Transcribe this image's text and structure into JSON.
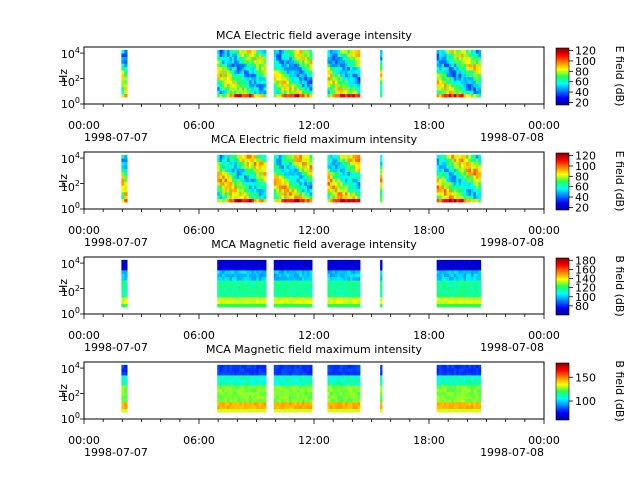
{
  "chart_data": [
    {
      "type": "heatmap",
      "title": "MCA  Electric field average intensity",
      "ylabel": "Hz",
      "y_scale": "log",
      "ylim": [
        1,
        30000
      ],
      "y_ticks": [
        {
          "base": "10",
          "exp": "0"
        },
        {
          "base": "10",
          "exp": "2"
        },
        {
          "base": "10",
          "exp": "4"
        }
      ],
      "x_range": [
        "1998-07-07 00:00",
        "1998-07-08 00:00"
      ],
      "x_ticks": [
        "00:00",
        "06:00",
        "12:00",
        "18:00",
        "00:00"
      ],
      "x_date_labels": [
        "1998-07-07",
        "1998-07-08"
      ],
      "colorbar": {
        "label": "E field (dB)",
        "range": [
          15,
          125
        ],
        "ticks": [
          "20",
          "40",
          "60",
          "80",
          "100",
          "120"
        ]
      },
      "data_intervals_hours": [
        [
          1.95,
          2.25
        ],
        [
          6.95,
          9.5
        ],
        [
          9.9,
          11.9
        ],
        [
          12.7,
          14.4
        ],
        [
          15.45,
          15.55
        ],
        [
          18.4,
          20.7
        ]
      ],
      "intensity_profile": "electric_avg"
    },
    {
      "type": "heatmap",
      "title": "MCA  Electric field maximum intensity",
      "ylabel": "Hz",
      "y_scale": "log",
      "ylim": [
        1,
        30000
      ],
      "y_ticks": [
        {
          "base": "10",
          "exp": "0"
        },
        {
          "base": "10",
          "exp": "2"
        },
        {
          "base": "10",
          "exp": "4"
        }
      ],
      "x_range": [
        "1998-07-07 00:00",
        "1998-07-08 00:00"
      ],
      "x_ticks": [
        "00:00",
        "06:00",
        "12:00",
        "18:00",
        "00:00"
      ],
      "x_date_labels": [
        "1998-07-07",
        "1998-07-08"
      ],
      "colorbar": {
        "label": "E field (dB)",
        "range": [
          15,
          125
        ],
        "ticks": [
          "20",
          "40",
          "60",
          "80",
          "100",
          "120"
        ]
      },
      "data_intervals_hours": [
        [
          1.95,
          2.25
        ],
        [
          6.95,
          9.5
        ],
        [
          9.9,
          11.9
        ],
        [
          12.7,
          14.4
        ],
        [
          15.45,
          15.55
        ],
        [
          18.4,
          20.7
        ]
      ],
      "intensity_profile": "electric_max"
    },
    {
      "type": "heatmap",
      "title": "MCA  Magnetic field average intensity",
      "ylabel": "Hz",
      "y_scale": "log",
      "ylim": [
        1,
        30000
      ],
      "y_ticks": [
        {
          "base": "10",
          "exp": "0"
        },
        {
          "base": "10",
          "exp": "2"
        },
        {
          "base": "10",
          "exp": "4"
        }
      ],
      "x_range": [
        "1998-07-07 00:00",
        "1998-07-08 00:00"
      ],
      "x_ticks": [
        "00:00",
        "06:00",
        "12:00",
        "18:00",
        "00:00"
      ],
      "x_date_labels": [
        "1998-07-07",
        "1998-07-08"
      ],
      "colorbar": {
        "label": "B field (dB)",
        "range": [
          60,
          185
        ],
        "ticks": [
          "80",
          "100",
          "120",
          "140",
          "160",
          "180"
        ]
      },
      "data_intervals_hours": [
        [
          1.95,
          2.25
        ],
        [
          6.95,
          9.5
        ],
        [
          9.9,
          11.9
        ],
        [
          12.7,
          14.4
        ],
        [
          15.45,
          15.55
        ],
        [
          18.4,
          20.7
        ]
      ],
      "intensity_profile": "magnetic_avg"
    },
    {
      "type": "heatmap",
      "title": "MCA  Magnetic field maximum intensity",
      "ylabel": "Hz",
      "y_scale": "log",
      "ylim": [
        1,
        30000
      ],
      "y_ticks": [
        {
          "base": "10",
          "exp": "0"
        },
        {
          "base": "10",
          "exp": "2"
        },
        {
          "base": "10",
          "exp": "4"
        }
      ],
      "x_range": [
        "1998-07-07 00:00",
        "1998-07-08 00:00"
      ],
      "x_ticks": [
        "00:00",
        "06:00",
        "12:00",
        "18:00",
        "00:00"
      ],
      "x_date_labels": [
        "1998-07-07",
        "1998-07-08"
      ],
      "colorbar": {
        "label": "B field (dB)",
        "range": [
          60,
          180
        ],
        "ticks": [
          "100",
          "150"
        ]
      },
      "data_intervals_hours": [
        [
          1.95,
          2.25
        ],
        [
          6.95,
          9.5
        ],
        [
          9.9,
          11.9
        ],
        [
          12.7,
          14.4
        ],
        [
          15.45,
          15.55
        ],
        [
          18.4,
          20.7
        ]
      ],
      "intensity_profile": "magnetic_max"
    }
  ]
}
